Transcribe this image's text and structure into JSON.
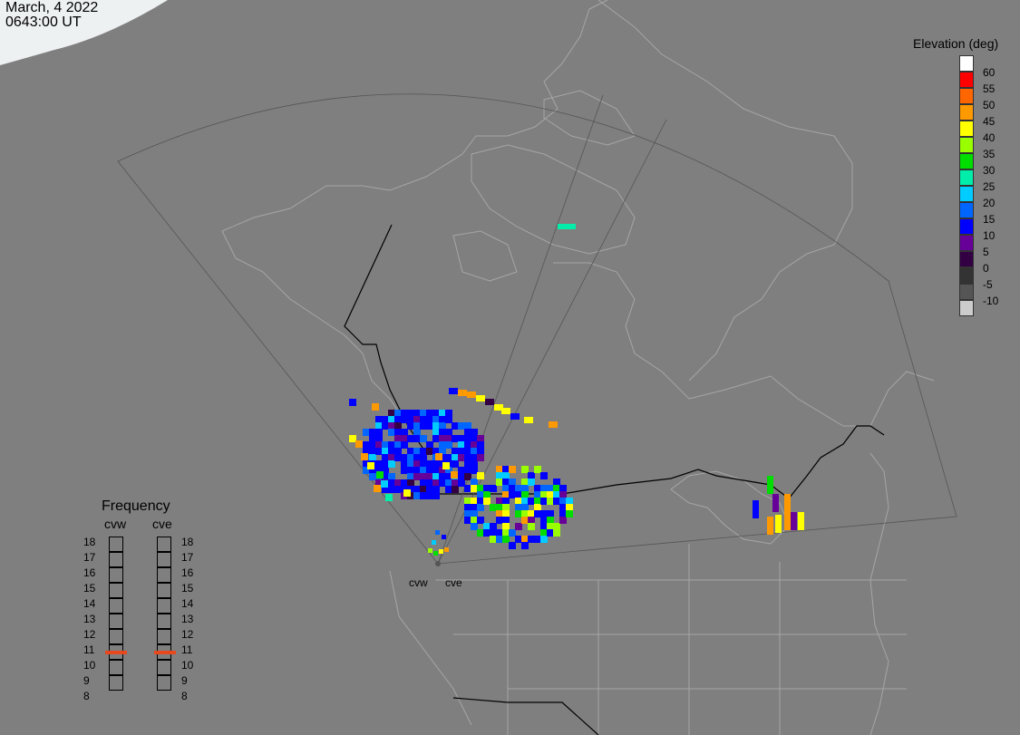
{
  "header": {
    "date": "March, 4 2022",
    "time": "0643:00 UT"
  },
  "color_scale": {
    "title": "Elevation (deg)",
    "entries": [
      {
        "label": "60",
        "color": "#ffffff"
      },
      {
        "label": "55",
        "color": "#ff0000"
      },
      {
        "label": "50",
        "color": "#ff6600"
      },
      {
        "label": "45",
        "color": "#ff9900"
      },
      {
        "label": "40",
        "color": "#ffff00"
      },
      {
        "label": "35",
        "color": "#99ff00"
      },
      {
        "label": "30",
        "color": "#00dd00"
      },
      {
        "label": "25",
        "color": "#00eeaa"
      },
      {
        "label": "20",
        "color": "#00ccff"
      },
      {
        "label": "15",
        "color": "#0066ff"
      },
      {
        "label": "10",
        "color": "#0000ff"
      },
      {
        "label": "5",
        "color": "#660099"
      },
      {
        "label": "0",
        "color": "#330044"
      },
      {
        "label": "-5",
        "color": "#333333"
      },
      {
        "label": "-10",
        "color": "#555555"
      },
      {
        "label": "",
        "color": "#cccccc"
      }
    ]
  },
  "frequency": {
    "title": "Frequency",
    "radars": [
      "cvw",
      "cve"
    ],
    "levels": [
      "18",
      "17",
      "16",
      "15",
      "14",
      "13",
      "12",
      "11",
      "10",
      "9",
      "8"
    ],
    "selected": {
      "cvw": 11,
      "cve": 11
    },
    "marker_color": "#e8481d"
  },
  "radar_sites": [
    {
      "name": "cvw"
    },
    {
      "name": "cve"
    }
  ],
  "colors": {
    "background": "#7f7f7f",
    "land_outline": "#a6a6a6",
    "border": "#000000",
    "fov": "#555555"
  }
}
